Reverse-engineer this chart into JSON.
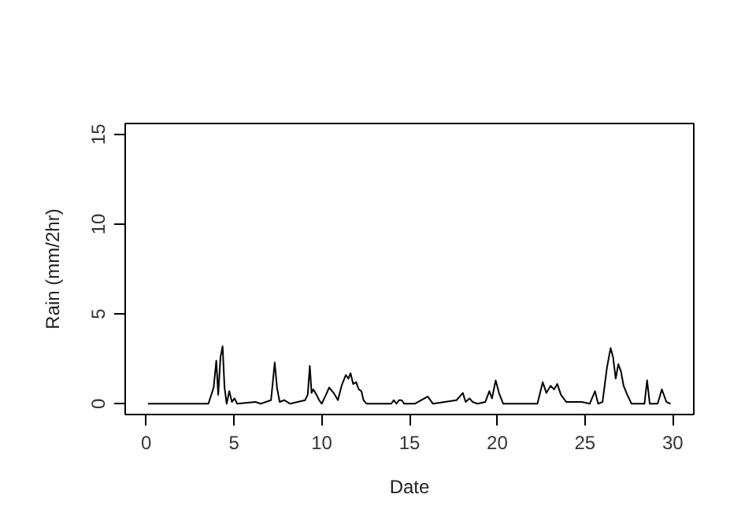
{
  "chart_data": {
    "type": "line",
    "xlabel": "Date",
    "ylabel": "Rain (mm/2hr)",
    "xlim": [
      -1.2,
      31.2
    ],
    "ylim": [
      -0.6,
      15.6
    ],
    "xticks": [
      0,
      5,
      10,
      15,
      20,
      25,
      30
    ],
    "yticks": [
      0,
      5,
      10,
      15
    ],
    "grid": false,
    "marker": "none",
    "line_style": "solid",
    "series": [
      {
        "color": "#000000",
        "x": [
          0.1,
          3.54,
          3.84,
          3.99,
          4.1,
          4.23,
          4.35,
          4.46,
          4.58,
          4.73,
          4.88,
          5.03,
          5.18,
          6.22,
          6.52,
          7.11,
          7.32,
          7.45,
          7.6,
          7.86,
          8.2,
          9.05,
          9.2,
          9.32,
          9.42,
          9.52,
          9.7,
          9.85,
          10.0,
          10.24,
          10.42,
          10.68,
          10.92,
          11.13,
          11.37,
          11.52,
          11.64,
          11.79,
          11.96,
          12.11,
          12.26,
          12.38,
          12.56,
          13.96,
          14.1,
          14.26,
          14.4,
          14.55,
          14.7,
          15.3,
          16.04,
          16.34,
          17.68,
          18.04,
          18.2,
          18.42,
          18.6,
          18.87,
          19.32,
          19.55,
          19.7,
          19.91,
          20.1,
          20.34,
          22.29,
          22.59,
          22.8,
          23.04,
          23.24,
          23.42,
          23.63,
          23.93,
          24.38,
          24.82,
          25.27,
          25.57,
          25.75,
          26.0,
          26.25,
          26.46,
          26.6,
          26.75,
          26.9,
          27.05,
          27.2,
          27.41,
          27.65,
          28.39,
          28.54,
          28.69,
          29.14,
          29.38,
          29.64,
          29.88
        ],
        "values": [
          0,
          0,
          0.9,
          2.4,
          0.5,
          2.6,
          3.2,
          0.9,
          0,
          0.7,
          0.1,
          0.3,
          0,
          0.1,
          0,
          0.2,
          2.3,
          0.9,
          0.1,
          0.2,
          0,
          0.2,
          0.5,
          2.1,
          0.6,
          0.8,
          0.5,
          0.2,
          0,
          0.5,
          0.9,
          0.6,
          0.2,
          1.0,
          1.6,
          1.4,
          1.7,
          1.1,
          1.2,
          0.8,
          0.7,
          0.2,
          0,
          0,
          0.2,
          0,
          0.2,
          0.2,
          0,
          0,
          0.4,
          0,
          0.2,
          0.6,
          0.1,
          0.3,
          0.1,
          0,
          0.1,
          0.7,
          0.3,
          1.3,
          0.6,
          0,
          0,
          1.2,
          0.6,
          1.0,
          0.8,
          1.1,
          0.5,
          0.1,
          0.1,
          0.1,
          0,
          0.7,
          0,
          0.1,
          2.0,
          3.1,
          2.6,
          1.4,
          2.2,
          1.8,
          1.0,
          0.5,
          0,
          0,
          1.3,
          0,
          0,
          0.8,
          0.1,
          0
        ]
      }
    ]
  }
}
